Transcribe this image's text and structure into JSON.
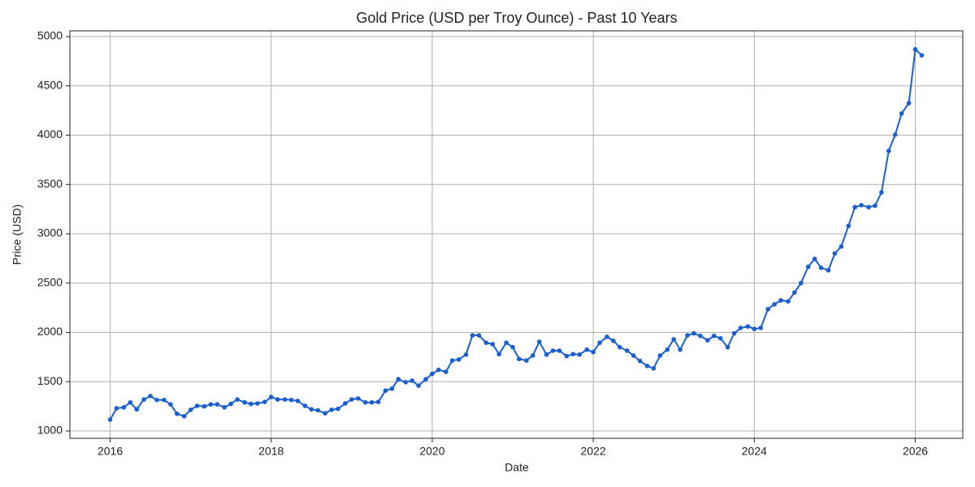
{
  "chart_data": {
    "type": "line",
    "title": "Gold Price (USD per Troy Ounce) - Past 10 Years",
    "x_label": "Date",
    "y_label": "Price (USD)",
    "color": "#1a5fd0",
    "grid": true,
    "xlim": [
      2015.5,
      2026.59
    ],
    "xticks": [
      2016,
      2018,
      2020,
      2022,
      2024,
      2026
    ],
    "ylim": [
      926,
      5058
    ],
    "yticks": [
      1000,
      1500,
      2000,
      2500,
      3000,
      3500,
      4000,
      4500,
      5000
    ],
    "x": [
      2016.0,
      2016.08,
      2016.17,
      2016.25,
      2016.33,
      2016.42,
      2016.5,
      2016.58,
      2016.67,
      2016.75,
      2016.83,
      2016.92,
      2017.0,
      2017.08,
      2017.17,
      2017.25,
      2017.33,
      2017.42,
      2017.5,
      2017.58,
      2017.67,
      2017.75,
      2017.83,
      2017.92,
      2018.0,
      2018.08,
      2018.17,
      2018.25,
      2018.33,
      2018.42,
      2018.5,
      2018.58,
      2018.67,
      2018.75,
      2018.83,
      2018.92,
      2019.0,
      2019.08,
      2019.17,
      2019.25,
      2019.33,
      2019.42,
      2019.5,
      2019.58,
      2019.67,
      2019.75,
      2019.83,
      2019.92,
      2020.0,
      2020.08,
      2020.17,
      2020.25,
      2020.33,
      2020.42,
      2020.5,
      2020.58,
      2020.67,
      2020.75,
      2020.83,
      2020.92,
      2021.0,
      2021.08,
      2021.17,
      2021.25,
      2021.33,
      2021.42,
      2021.5,
      2021.58,
      2021.67,
      2021.75,
      2021.83,
      2021.92,
      2022.0,
      2022.08,
      2022.17,
      2022.25,
      2022.33,
      2022.42,
      2022.5,
      2022.58,
      2022.67,
      2022.75,
      2022.83,
      2022.92,
      2023.0,
      2023.08,
      2023.17,
      2023.25,
      2023.33,
      2023.42,
      2023.5,
      2023.58,
      2023.67,
      2023.75,
      2023.83,
      2023.92,
      2024.0,
      2024.08,
      2024.17,
      2024.25,
      2024.33,
      2024.42,
      2024.5,
      2024.58,
      2024.67,
      2024.75,
      2024.83,
      2024.92,
      2025.0,
      2025.08,
      2025.17,
      2025.25,
      2025.33,
      2025.42,
      2025.5,
      2025.58,
      2025.67,
      2025.75,
      2025.83,
      2025.92,
      2026.0,
      2026.08
    ],
    "values": [
      1115,
      1230,
      1240,
      1290,
      1220,
      1320,
      1355,
      1315,
      1315,
      1270,
      1175,
      1150,
      1215,
      1255,
      1250,
      1270,
      1270,
      1240,
      1275,
      1320,
      1290,
      1275,
      1280,
      1295,
      1345,
      1320,
      1320,
      1315,
      1305,
      1255,
      1220,
      1210,
      1180,
      1215,
      1225,
      1280,
      1320,
      1330,
      1290,
      1290,
      1295,
      1410,
      1430,
      1525,
      1495,
      1510,
      1460,
      1525,
      1580,
      1620,
      1600,
      1715,
      1725,
      1775,
      1970,
      1970,
      1895,
      1880,
      1780,
      1895,
      1850,
      1730,
      1715,
      1765,
      1905,
      1775,
      1815,
      1815,
      1760,
      1780,
      1775,
      1825,
      1800,
      1895,
      1955,
      1915,
      1850,
      1815,
      1765,
      1710,
      1660,
      1635,
      1765,
      1825,
      1930,
      1825,
      1970,
      1990,
      1965,
      1920,
      1965,
      1940,
      1850,
      1990,
      2045,
      2060,
      2035,
      2045,
      2235,
      2285,
      2325,
      2315,
      2405,
      2500,
      2665,
      2745,
      2655,
      2630,
      2800,
      2870,
      3080,
      3270,
      3290,
      3270,
      3285,
      3420,
      3840,
      4005,
      4220,
      4325,
      4870,
      4810
    ]
  }
}
